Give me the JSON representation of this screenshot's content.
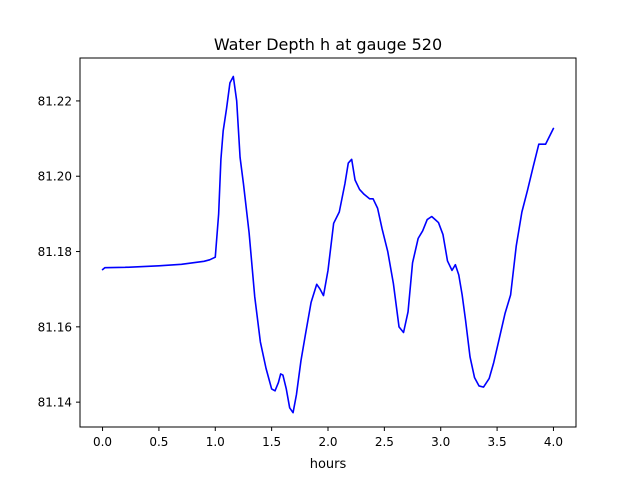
{
  "chart_data": {
    "type": "line",
    "title": "Water Depth h at gauge 520",
    "xlabel": "hours",
    "ylabel": "",
    "xlim": [
      -0.2,
      4.2
    ],
    "ylim": [
      81.1334,
      81.2314
    ],
    "xticks": [
      0.0,
      0.5,
      1.0,
      1.5,
      2.0,
      2.5,
      3.0,
      3.5,
      4.0
    ],
    "xtick_labels": [
      "0.0",
      "0.5",
      "1.0",
      "1.5",
      "2.0",
      "2.5",
      "3.0",
      "3.5",
      "4.0"
    ],
    "yticks": [
      81.14,
      81.16,
      81.18,
      81.2,
      81.22
    ],
    "ytick_labels": [
      "81.14",
      "81.16",
      "81.18",
      "81.20",
      "81.22"
    ],
    "grid": false,
    "series": [
      {
        "color": "#0000ff",
        "x": [
          0.0,
          0.02,
          0.2,
          0.5,
          0.7,
          0.8,
          0.9,
          0.95,
          1.0,
          1.03,
          1.05,
          1.07,
          1.1,
          1.13,
          1.16,
          1.19,
          1.22,
          1.25,
          1.3,
          1.35,
          1.4,
          1.45,
          1.5,
          1.53,
          1.56,
          1.58,
          1.6,
          1.63,
          1.66,
          1.69,
          1.72,
          1.76,
          1.8,
          1.85,
          1.9,
          1.93,
          1.96,
          2.0,
          2.05,
          2.1,
          2.15,
          2.18,
          2.21,
          2.24,
          2.28,
          2.32,
          2.37,
          2.4,
          2.44,
          2.48,
          2.53,
          2.58,
          2.63,
          2.67,
          2.71,
          2.75,
          2.8,
          2.84,
          2.88,
          2.92,
          2.95,
          2.98,
          3.02,
          3.06,
          3.1,
          3.13,
          3.16,
          3.19,
          3.22,
          3.26,
          3.3,
          3.34,
          3.38,
          3.43,
          3.47,
          3.52,
          3.57,
          3.62,
          3.67,
          3.72,
          3.77,
          3.82,
          3.87,
          3.93,
          4.0
        ],
        "y": [
          81.1752,
          81.1757,
          81.1758,
          81.1762,
          81.1766,
          81.177,
          81.1774,
          81.1778,
          81.1785,
          81.19,
          81.2045,
          81.212,
          81.218,
          81.2248,
          81.2265,
          81.22,
          81.205,
          81.198,
          81.185,
          81.168,
          81.156,
          81.149,
          81.1435,
          81.143,
          81.1452,
          81.1475,
          81.1472,
          81.1435,
          81.1385,
          81.1372,
          81.142,
          81.151,
          81.158,
          81.1665,
          81.1713,
          81.17,
          81.1683,
          81.175,
          81.1875,
          81.1905,
          81.198,
          81.2035,
          81.2045,
          81.199,
          81.1965,
          81.1952,
          81.194,
          81.194,
          81.1915,
          81.186,
          81.18,
          81.1715,
          81.16,
          81.1585,
          81.164,
          81.177,
          81.1835,
          81.1855,
          81.1885,
          81.1893,
          81.1885,
          81.1877,
          81.1845,
          81.1775,
          81.175,
          81.1765,
          81.1738,
          81.1685,
          81.1618,
          81.152,
          81.1465,
          81.1443,
          81.144,
          81.1463,
          81.1505,
          81.157,
          81.1635,
          81.1685,
          81.1815,
          81.1905,
          81.1963,
          81.2025,
          81.2085,
          81.2085,
          81.2127
        ]
      }
    ]
  }
}
